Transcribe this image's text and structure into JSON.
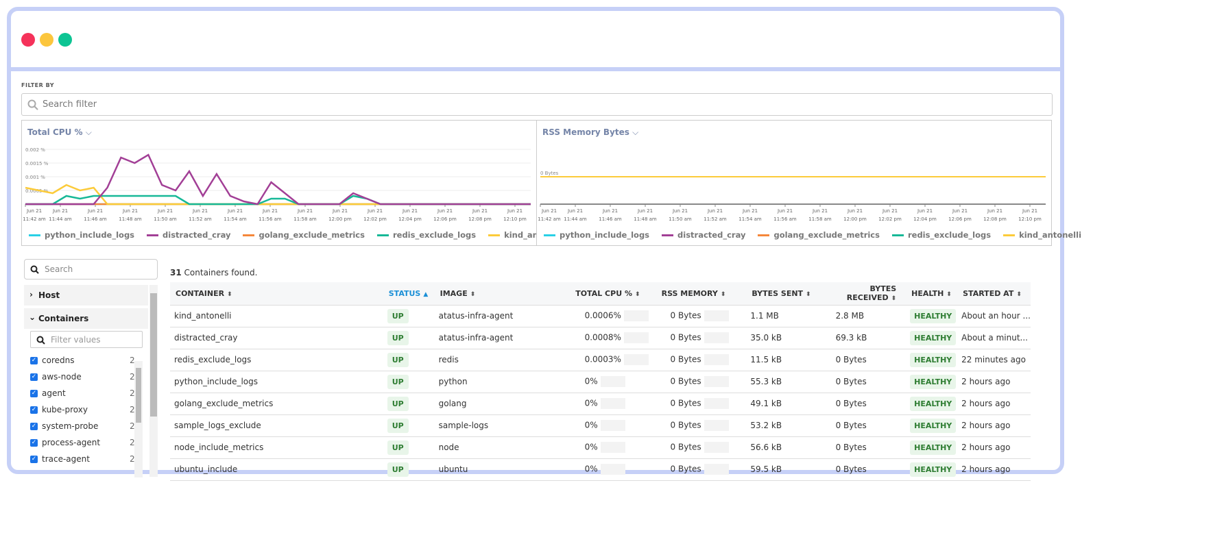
{
  "colors": {
    "python_include_logs": "#29d0e6",
    "distracted_cray": "#a23f96",
    "golang_exclude_metrics": "#f5873b",
    "redis_exclude_logs": "#17b897",
    "kind_antonelli": "#fccb3a"
  },
  "filter": {
    "label": "FILTER BY",
    "placeholder": "Search filter"
  },
  "chart_data": [
    {
      "type": "line",
      "title": "Total CPU %",
      "ylim": [
        0,
        0.002
      ],
      "yticks": [
        "0.002 %",
        "0.0015 %",
        "0.001 %",
        "0.0005 %"
      ],
      "xticks": [
        [
          "Jun 21",
          "11:42 am"
        ],
        [
          "Jun 21",
          "11:44 am"
        ],
        [
          "Jun 21",
          "11:46 am"
        ],
        [
          "Jun 21",
          "11:48 am"
        ],
        [
          "Jun 21",
          "11:50 am"
        ],
        [
          "Jun 21",
          "11:52 am"
        ],
        [
          "Jun 21",
          "11:54 am"
        ],
        [
          "Jun 21",
          "11:56 am"
        ],
        [
          "Jun 21",
          "11:58 am"
        ],
        [
          "Jun 21",
          "12:00 pm"
        ],
        [
          "Jun 21",
          "12:02 pm"
        ],
        [
          "Jun 21",
          "12:04 pm"
        ],
        [
          "Jun 21",
          "12:06 pm"
        ],
        [
          "Jun 21",
          "12:08 pm"
        ],
        [
          "Jun 21",
          "12:10 pm"
        ]
      ],
      "series": [
        {
          "name": "python_include_logs",
          "values": [
            0,
            0,
            0,
            0,
            0,
            0,
            0,
            0,
            0,
            0,
            0,
            0,
            0,
            0,
            0,
            0,
            0,
            0,
            0,
            0,
            0,
            0,
            0,
            0,
            0,
            0,
            0,
            0,
            0,
            0,
            0,
            0,
            0,
            0,
            0,
            0,
            0,
            0
          ]
        },
        {
          "name": "distracted_cray",
          "values": [
            0,
            0,
            0,
            0,
            0,
            0,
            0.0006,
            0.0017,
            0.0015,
            0.0018,
            0.0007,
            0.0005,
            0.0012,
            0.0003,
            0.0011,
            0.0003,
            0.0001,
            0,
            0.0008,
            0.0004,
            0,
            0,
            0,
            0,
            0.0004,
            0.0002,
            0,
            0,
            0,
            0,
            0,
            0,
            0,
            0,
            0,
            0,
            0,
            0
          ]
        },
        {
          "name": "golang_exclude_metrics",
          "values": [
            0,
            0,
            0,
            0,
            0,
            0,
            0,
            0,
            0,
            0,
            0,
            0,
            0,
            0,
            0,
            0,
            0,
            0,
            0,
            0,
            0,
            0,
            0,
            0,
            0,
            0,
            0,
            0,
            0,
            0,
            0,
            0,
            0,
            0,
            0,
            0,
            0,
            0
          ]
        },
        {
          "name": "redis_exclude_logs",
          "values": [
            0,
            0,
            0,
            0.0003,
            0.0002,
            0.0003,
            0.0003,
            0.0003,
            0.0003,
            0.0003,
            0.0003,
            0.0003,
            0,
            0,
            0,
            0,
            0,
            0,
            0.0002,
            0.0002,
            0,
            0,
            0,
            0,
            0.0003,
            0.0002,
            0,
            0,
            0,
            0,
            0,
            0,
            0,
            0,
            0,
            0,
            0,
            0
          ]
        },
        {
          "name": "kind_antonelli",
          "values": [
            0.0006,
            0.0005,
            0.0004,
            0.0007,
            0.0005,
            0.0006,
            0,
            0,
            0,
            0,
            0,
            0,
            0,
            0,
            0,
            0,
            0,
            0,
            0,
            0,
            0,
            0,
            0,
            0,
            0,
            0,
            0,
            0,
            0,
            0,
            0,
            0,
            0,
            0,
            0,
            0,
            0,
            0
          ]
        }
      ]
    },
    {
      "type": "line",
      "title": "RSS Memory Bytes",
      "yticks": [
        "0 Bytes"
      ],
      "xticks": [
        [
          "Jun 21",
          "11:42 am"
        ],
        [
          "Jun 21",
          "11:44 am"
        ],
        [
          "Jun 21",
          "11:46 am"
        ],
        [
          "Jun 21",
          "11:48 am"
        ],
        [
          "Jun 21",
          "11:50 am"
        ],
        [
          "Jun 21",
          "11:52 am"
        ],
        [
          "Jun 21",
          "11:54 am"
        ],
        [
          "Jun 21",
          "11:56 am"
        ],
        [
          "Jun 21",
          "11:58 am"
        ],
        [
          "Jun 21",
          "12:00 pm"
        ],
        [
          "Jun 21",
          "12:02 pm"
        ],
        [
          "Jun 21",
          "12:04 pm"
        ],
        [
          "Jun 21",
          "12:06 pm"
        ],
        [
          "Jun 21",
          "12:08 pm"
        ],
        [
          "Jun 21",
          "12:10 pm"
        ]
      ],
      "series": [
        {
          "name": "python_include_logs",
          "values": [
            0,
            0
          ]
        },
        {
          "name": "distracted_cray",
          "values": [
            0,
            0
          ]
        },
        {
          "name": "golang_exclude_metrics",
          "values": [
            0,
            0
          ]
        },
        {
          "name": "redis_exclude_logs",
          "values": [
            0,
            0
          ]
        },
        {
          "name": "kind_antonelli",
          "values": [
            0,
            0
          ]
        }
      ]
    }
  ],
  "sidebar": {
    "search_placeholder": "Search",
    "host": "Host",
    "containers": "Containers",
    "filter_placeholder": "Filter values",
    "items": [
      {
        "label": "coredns",
        "count": "2"
      },
      {
        "label": "aws-node",
        "count": "2"
      },
      {
        "label": "agent",
        "count": "2"
      },
      {
        "label": "kube-proxy",
        "count": "2"
      },
      {
        "label": "system-probe",
        "count": "2"
      },
      {
        "label": "process-agent",
        "count": "2"
      },
      {
        "label": "trace-agent",
        "count": "2"
      }
    ]
  },
  "table": {
    "count": "31",
    "count_label": "Containers found.",
    "headers": [
      "CONTAINER",
      "STATUS",
      "IMAGE",
      "TOTAL CPU %",
      "RSS MEMORY",
      "BYTES SENT",
      "BYTES RECEIVED",
      "HEALTH",
      "STARTED AT"
    ],
    "rows": [
      [
        "kind_antonelli",
        "UP",
        "atatus-infra-agent",
        "0.0006%",
        "0 Bytes",
        "1.1 MB",
        "2.8 MB",
        "HEALTHY",
        "About an hour ..."
      ],
      [
        "distracted_cray",
        "UP",
        "atatus-infra-agent",
        "0.0008%",
        "0 Bytes",
        "35.0 kB",
        "69.3 kB",
        "HEALTHY",
        "About a minut..."
      ],
      [
        "redis_exclude_logs",
        "UP",
        "redis",
        "0.0003%",
        "0 Bytes",
        "11.5 kB",
        "0 Bytes",
        "HEALTHY",
        "22 minutes ago"
      ],
      [
        "python_include_logs",
        "UP",
        "python",
        "0%",
        "0 Bytes",
        "55.3 kB",
        "0 Bytes",
        "HEALTHY",
        "2 hours ago"
      ],
      [
        "golang_exclude_metrics",
        "UP",
        "golang",
        "0%",
        "0 Bytes",
        "49.1 kB",
        "0 Bytes",
        "HEALTHY",
        "2 hours ago"
      ],
      [
        "sample_logs_exclude",
        "UP",
        "sample-logs",
        "0%",
        "0 Bytes",
        "53.2 kB",
        "0 Bytes",
        "HEALTHY",
        "2 hours ago"
      ],
      [
        "node_include_metrics",
        "UP",
        "node",
        "0%",
        "0 Bytes",
        "56.6 kB",
        "0 Bytes",
        "HEALTHY",
        "2 hours ago"
      ],
      [
        "ubuntu_include",
        "UP",
        "ubuntu",
        "0%",
        "0 Bytes",
        "59.5 kB",
        "0 Bytes",
        "HEALTHY",
        "2 hours ago"
      ]
    ]
  }
}
